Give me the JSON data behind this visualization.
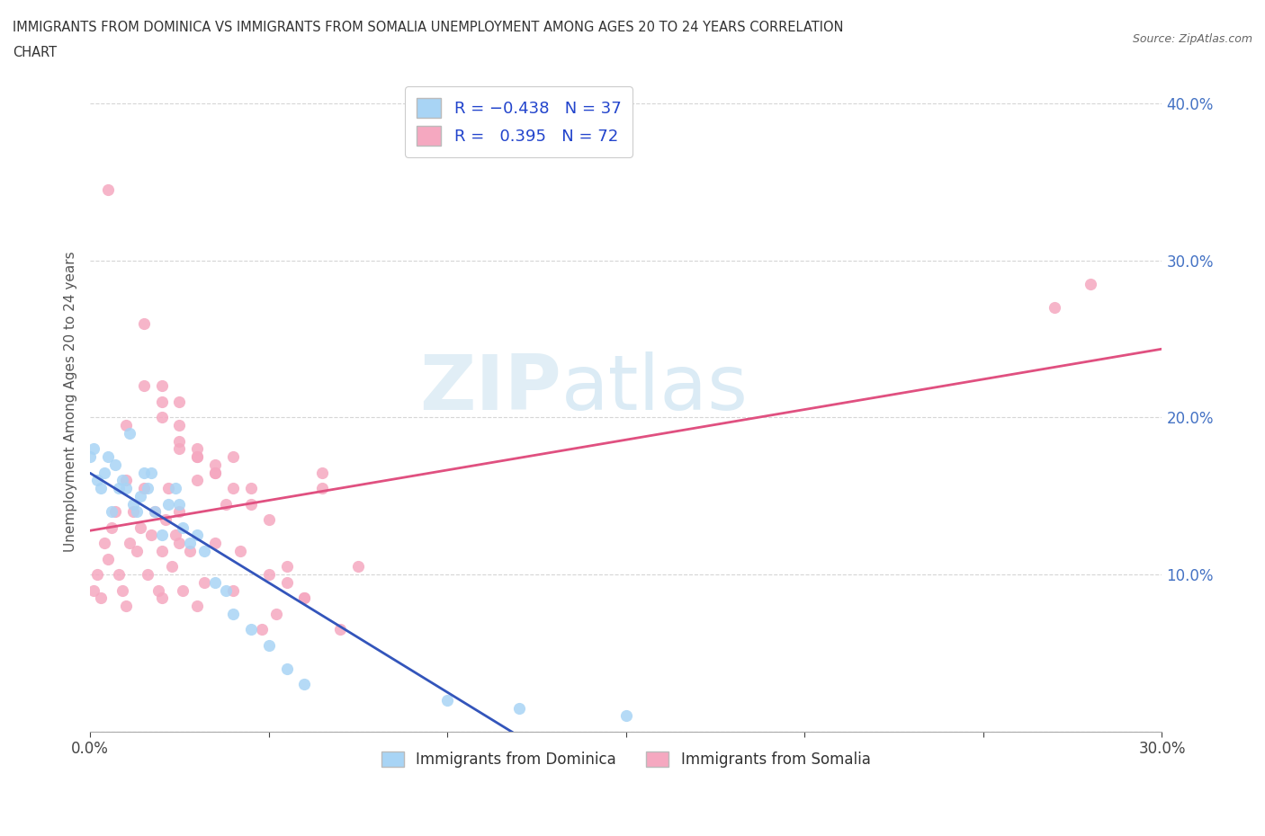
{
  "title_line1": "IMMIGRANTS FROM DOMINICA VS IMMIGRANTS FROM SOMALIA UNEMPLOYMENT AMONG AGES 20 TO 24 YEARS CORRELATION",
  "title_line2": "CHART",
  "source": "Source: ZipAtlas.com",
  "ylabel": "Unemployment Among Ages 20 to 24 years",
  "xlabel_dominica": "Immigrants from Dominica",
  "xlabel_somalia": "Immigrants from Somalia",
  "dominica_R": -0.438,
  "dominica_N": 37,
  "somalia_R": 0.395,
  "somalia_N": 72,
  "dominica_color": "#a8d4f5",
  "somalia_color": "#f5a8c0",
  "dominica_line_color": "#3355bb",
  "somalia_line_color": "#e05080",
  "dominica_line_dash": "dashed",
  "watermark_zip": "ZIP",
  "watermark_atlas": "atlas",
  "xlim": [
    0.0,
    0.3
  ],
  "ylim": [
    0.0,
    0.42
  ],
  "x_ticks": [
    0.0,
    0.05,
    0.1,
    0.15,
    0.2,
    0.25,
    0.3
  ],
  "y_ticks": [
    0.0,
    0.1,
    0.2,
    0.3,
    0.4
  ],
  "dominica_x": [
    0.0,
    0.001,
    0.002,
    0.003,
    0.004,
    0.005,
    0.006,
    0.007,
    0.008,
    0.009,
    0.01,
    0.011,
    0.012,
    0.013,
    0.014,
    0.015,
    0.016,
    0.017,
    0.018,
    0.02,
    0.022,
    0.024,
    0.025,
    0.026,
    0.028,
    0.03,
    0.032,
    0.035,
    0.038,
    0.04,
    0.045,
    0.05,
    0.055,
    0.06,
    0.1,
    0.12,
    0.15
  ],
  "dominica_y": [
    0.175,
    0.18,
    0.16,
    0.155,
    0.165,
    0.175,
    0.14,
    0.17,
    0.155,
    0.16,
    0.155,
    0.19,
    0.145,
    0.14,
    0.15,
    0.165,
    0.155,
    0.165,
    0.14,
    0.125,
    0.145,
    0.155,
    0.145,
    0.13,
    0.12,
    0.125,
    0.115,
    0.095,
    0.09,
    0.075,
    0.065,
    0.055,
    0.04,
    0.03,
    0.02,
    0.015,
    0.01
  ],
  "somalia_x": [
    0.001,
    0.002,
    0.003,
    0.004,
    0.005,
    0.006,
    0.007,
    0.008,
    0.009,
    0.01,
    0.011,
    0.012,
    0.013,
    0.014,
    0.015,
    0.016,
    0.017,
    0.018,
    0.019,
    0.02,
    0.021,
    0.022,
    0.023,
    0.024,
    0.025,
    0.026,
    0.028,
    0.03,
    0.032,
    0.035,
    0.038,
    0.04,
    0.042,
    0.045,
    0.048,
    0.05,
    0.052,
    0.055,
    0.06,
    0.065,
    0.03,
    0.035,
    0.04,
    0.045,
    0.05,
    0.055,
    0.06,
    0.065,
    0.07,
    0.075,
    0.025,
    0.03,
    0.035,
    0.02,
    0.025,
    0.03,
    0.035,
    0.04,
    0.02,
    0.025,
    0.01,
    0.015,
    0.02,
    0.025,
    0.005,
    0.01,
    0.015,
    0.02,
    0.025,
    0.03,
    0.27,
    0.28
  ],
  "somalia_y": [
    0.09,
    0.1,
    0.085,
    0.12,
    0.11,
    0.13,
    0.14,
    0.1,
    0.09,
    0.08,
    0.12,
    0.14,
    0.115,
    0.13,
    0.155,
    0.1,
    0.125,
    0.14,
    0.09,
    0.115,
    0.135,
    0.155,
    0.105,
    0.125,
    0.14,
    0.09,
    0.115,
    0.08,
    0.095,
    0.12,
    0.145,
    0.09,
    0.115,
    0.155,
    0.065,
    0.1,
    0.075,
    0.095,
    0.085,
    0.165,
    0.175,
    0.165,
    0.175,
    0.145,
    0.135,
    0.105,
    0.085,
    0.155,
    0.065,
    0.105,
    0.18,
    0.175,
    0.165,
    0.2,
    0.185,
    0.18,
    0.17,
    0.155,
    0.22,
    0.21,
    0.195,
    0.26,
    0.21,
    0.195,
    0.345,
    0.16,
    0.22,
    0.085,
    0.12,
    0.16,
    0.27,
    0.285
  ]
}
